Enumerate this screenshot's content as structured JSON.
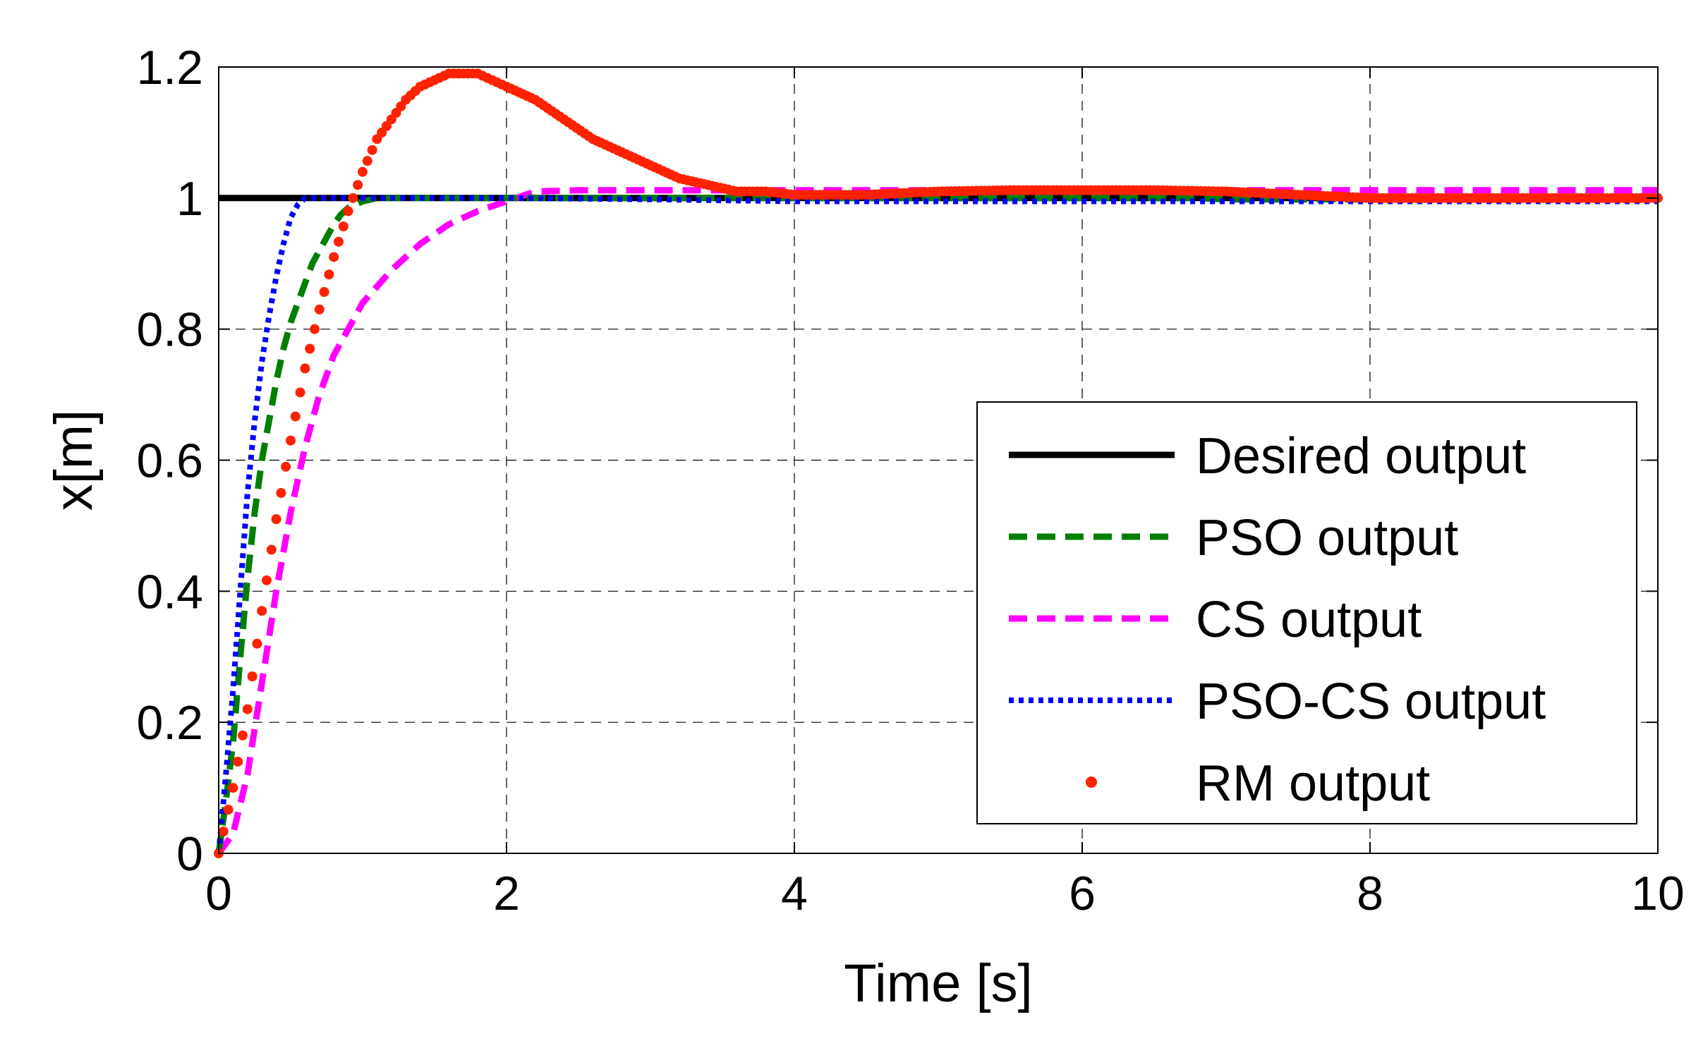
{
  "chart_data": {
    "type": "line",
    "xlabel": "Time [s]",
    "ylabel": "x[m]",
    "xlim": [
      0,
      10
    ],
    "ylim": [
      0,
      1.2
    ],
    "xticks": [
      0,
      2,
      4,
      6,
      8,
      10
    ],
    "xtick_labels": [
      "0",
      "2",
      "4",
      "6",
      "8",
      "10"
    ],
    "yticks": [
      0,
      0.2,
      0.4,
      0.6,
      0.8,
      1,
      1.2
    ],
    "ytick_labels": [
      "0",
      "0.2",
      "0.4",
      "0.6",
      "0.8",
      "1",
      "1.2"
    ],
    "grid": true,
    "legend_position": "bottom-right",
    "series": [
      {
        "name": "Desired output",
        "color": "#000000",
        "style": "solid",
        "x": [
          0,
          10
        ],
        "y": [
          1,
          1
        ]
      },
      {
        "name": "PSO output",
        "color": "#007f00",
        "style": "dashed",
        "x": [
          0,
          0.05,
          0.1,
          0.15,
          0.2,
          0.25,
          0.3,
          0.35,
          0.4,
          0.45,
          0.5,
          0.55,
          0.6,
          0.65,
          0.7,
          0.75,
          0.8,
          0.85,
          0.9,
          1.0,
          1.1,
          1.2,
          1.4,
          1.7,
          2.0,
          3.0,
          4.0,
          5.0,
          6.0,
          6.8,
          7.0,
          8.0,
          9.0,
          10.0
        ],
        "y": [
          0,
          0.08,
          0.17,
          0.3,
          0.42,
          0.52,
          0.6,
          0.66,
          0.72,
          0.77,
          0.81,
          0.84,
          0.87,
          0.9,
          0.92,
          0.94,
          0.96,
          0.975,
          0.985,
          0.995,
          1.0,
          1.0,
          1.0,
          1.0,
          1.0,
          1.0,
          1.0,
          1.0,
          1.0,
          1.0,
          0.998,
          0.998,
          0.998,
          0.998
        ]
      },
      {
        "name": "CS output",
        "color": "#ff00ff",
        "style": "dashed",
        "x": [
          0,
          0.1,
          0.2,
          0.3,
          0.4,
          0.5,
          0.6,
          0.7,
          0.8,
          0.9,
          1.0,
          1.2,
          1.4,
          1.6,
          1.8,
          2.0,
          2.2,
          2.5,
          3.0,
          4.0,
          5.0,
          6.0,
          7.0,
          8.0,
          9.0,
          10.0
        ],
        "y": [
          0,
          0.03,
          0.12,
          0.26,
          0.4,
          0.52,
          0.62,
          0.7,
          0.76,
          0.8,
          0.84,
          0.89,
          0.93,
          0.96,
          0.98,
          0.995,
          1.01,
          1.012,
          1.012,
          1.012,
          1.012,
          1.012,
          1.012,
          1.012,
          1.012,
          1.012
        ]
      },
      {
        "name": "PSO-CS output",
        "color": "#0000ff",
        "style": "dotted",
        "x": [
          0,
          0.05,
          0.1,
          0.15,
          0.2,
          0.25,
          0.3,
          0.35,
          0.4,
          0.45,
          0.5,
          0.55,
          0.6,
          0.8,
          1.0,
          2.0,
          3.0,
          4.0,
          5.0,
          6.0,
          7.0,
          8.0,
          9.0,
          10.0
        ],
        "y": [
          0,
          0.12,
          0.25,
          0.4,
          0.55,
          0.66,
          0.75,
          0.82,
          0.88,
          0.93,
          0.97,
          0.99,
          1.0,
          1.0,
          1.0,
          1.0,
          0.998,
          0.995,
          0.995,
          0.995,
          0.995,
          0.995,
          0.995,
          0.995
        ]
      },
      {
        "name": "RM output",
        "color": "#ff2200",
        "style": "dots",
        "x": [
          0,
          0.1,
          0.2,
          0.3,
          0.4,
          0.5,
          0.6,
          0.7,
          0.8,
          0.9,
          1.0,
          1.1,
          1.2,
          1.3,
          1.4,
          1.5,
          1.6,
          1.7,
          1.8,
          1.9,
          2.0,
          2.2,
          2.4,
          2.6,
          2.8,
          3.0,
          3.2,
          3.4,
          3.6,
          3.8,
          4.0,
          4.5,
          5.0,
          5.5,
          6.0,
          6.5,
          7.0,
          7.5,
          8.0,
          8.5,
          9.0,
          9.5,
          10.0
        ],
        "y": [
          0,
          0.1,
          0.22,
          0.37,
          0.51,
          0.63,
          0.74,
          0.83,
          0.91,
          0.98,
          1.04,
          1.09,
          1.12,
          1.15,
          1.17,
          1.18,
          1.19,
          1.19,
          1.19,
          1.18,
          1.17,
          1.15,
          1.12,
          1.09,
          1.07,
          1.05,
          1.03,
          1.02,
          1.01,
          1.01,
          1.005,
          1.005,
          1.01,
          1.012,
          1.012,
          1.012,
          1.01,
          1.005,
          1.0,
          1.0,
          1.0,
          1.0,
          1.0
        ]
      }
    ]
  }
}
